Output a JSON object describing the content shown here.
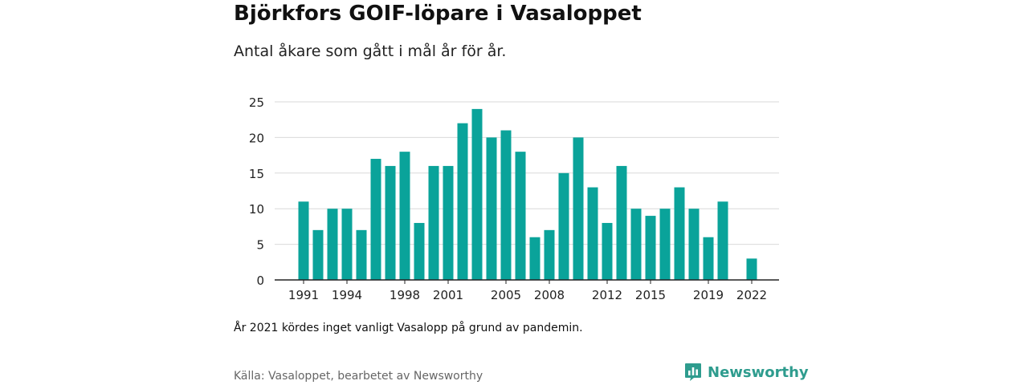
{
  "title": "Björkfors GOIF-löpare i Vasaloppet",
  "subtitle": "Antal åkare som gått i mål år för år.",
  "note": "År 2021 kördes inget vanligt Vasalopp på grund av pandemin.",
  "source": "Källa: Vasaloppet, bearbetet av Newsworthy",
  "brand": {
    "name": "Newsworthy",
    "icon": "newsworthy-logo-icon",
    "color": "#2e9c8e"
  },
  "colors": {
    "bar": "#0aa39a",
    "grid": "#d9d9d9",
    "axis": "#222222"
  },
  "chart_data": {
    "type": "bar",
    "title": "",
    "xlabel": "",
    "ylabel": "",
    "ylim": [
      0,
      25
    ],
    "yticks": [
      0,
      5,
      10,
      15,
      20,
      25
    ],
    "xticks": [
      "1991",
      "1994",
      "1998",
      "2001",
      "2005",
      "2008",
      "2012",
      "2015",
      "2019",
      "2022"
    ],
    "grid": true,
    "categories": [
      1991,
      1992,
      1993,
      1994,
      1995,
      1996,
      1997,
      1998,
      1999,
      2000,
      2001,
      2002,
      2003,
      2004,
      2005,
      2006,
      2007,
      2008,
      2009,
      2010,
      2011,
      2012,
      2013,
      2014,
      2015,
      2016,
      2017,
      2018,
      2019,
      2020,
      2021,
      2022
    ],
    "values": [
      11,
      7,
      10,
      10,
      7,
      17,
      16,
      18,
      8,
      16,
      16,
      22,
      24,
      20,
      21,
      18,
      6,
      7,
      15,
      20,
      13,
      8,
      16,
      10,
      9,
      10,
      13,
      10,
      6,
      11,
      null,
      3
    ]
  }
}
